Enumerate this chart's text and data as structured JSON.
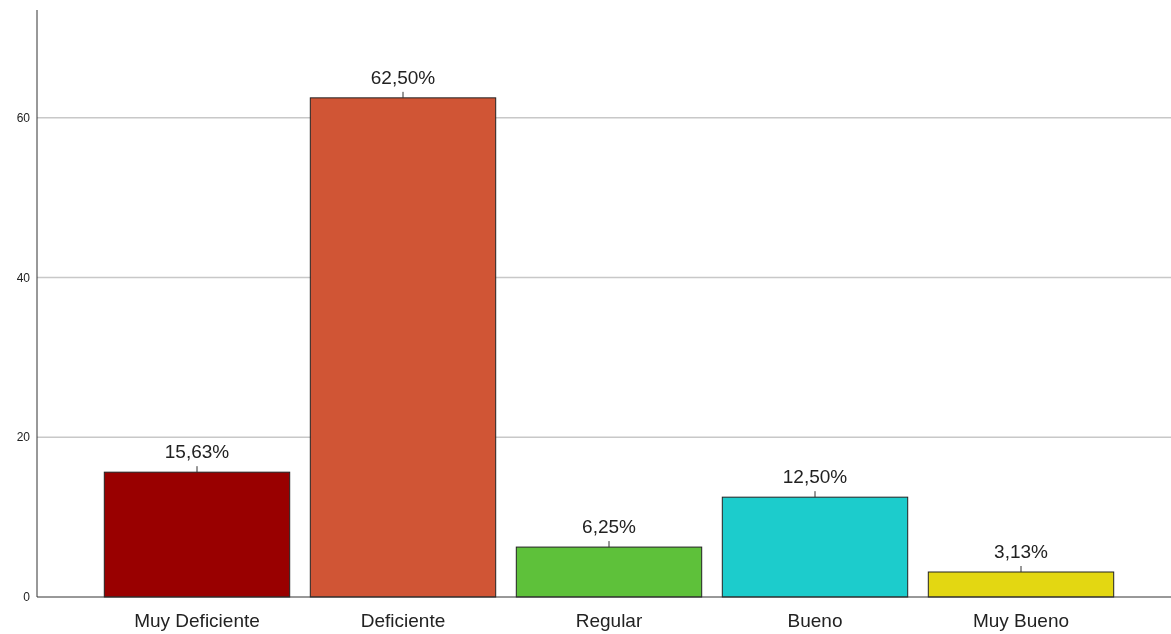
{
  "chart_data": {
    "type": "bar",
    "categories": [
      "Muy Deficiente",
      "Deficiente",
      "Regular",
      "Bueno",
      "Muy Bueno"
    ],
    "values": [
      15.63,
      62.5,
      6.25,
      12.5,
      3.13
    ],
    "colors": [
      "#990000",
      "#d05535",
      "#5ec13a",
      "#1ccccc",
      "#e3d712"
    ],
    "value_labels": [
      "15,63%",
      "62,50%",
      "6,25%",
      "12,50%",
      "3,13%"
    ],
    "ylim": [
      0,
      73.5
    ],
    "yticks": [
      0,
      20,
      40,
      60
    ],
    "grid": "y"
  }
}
